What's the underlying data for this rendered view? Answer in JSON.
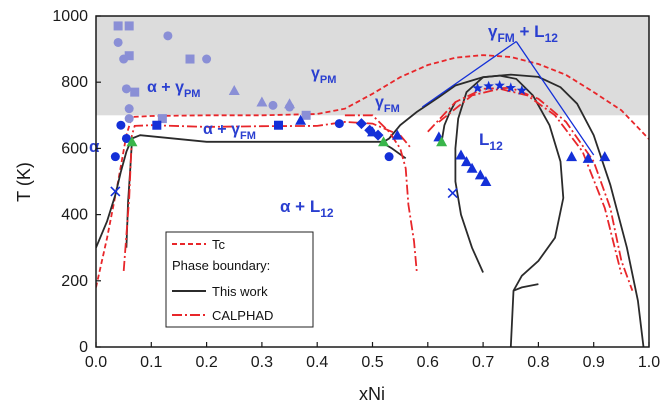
{
  "chart_data": {
    "type": "scatter",
    "title": "",
    "xlabel": "xNi",
    "ylabel": "T (K)",
    "xlim": [
      0.0,
      1.0
    ],
    "ylim": [
      0,
      1000
    ],
    "x_ticks": [
      0.0,
      0.1,
      0.2,
      0.3,
      0.4,
      0.5,
      0.6,
      0.7,
      0.8,
      0.9,
      1.0
    ],
    "y_ticks": [
      0,
      200,
      400,
      600,
      800,
      1000
    ],
    "x_tick_labels": [
      "0.0",
      "0.1",
      "0.2",
      "0.3",
      "0.4",
      "0.5",
      "0.6",
      "0.7",
      "0.8",
      "0.9",
      "1.0"
    ],
    "y_tick_labels": [
      "0",
      "200",
      "400",
      "600",
      "800",
      "1000"
    ],
    "shaded_region": {
      "color": "#dcdcdc",
      "description_y_bottom": 700
    },
    "colors": {
      "tc": "#e8262a",
      "this_work": "#2b2b2b",
      "calphad": "#e8262a",
      "exp": "#1430d8",
      "exp_light": "#8a8fd6",
      "triangle_green": "#39b54a",
      "label": "#2a3fd0"
    },
    "phase_labels": {
      "alpha": "α",
      "alpha_gpm": "α + γPM",
      "alpha_gfm": "α + γFM",
      "gpm": "γPM",
      "gfm": "γFM",
      "gfm_l12": "γFM + L12",
      "l12": "L12",
      "alpha_l12": "α + L12"
    },
    "legend": {
      "tc": "Tc",
      "phase_boundary_header": "Phase boundary:",
      "this_work": "This work",
      "calphad": "CALPHAD"
    },
    "series": [
      {
        "name": "Tc",
        "style": "dashed",
        "points": [
          [
            0.0,
            180
          ],
          [
            0.02,
            330
          ],
          [
            0.04,
            500
          ],
          [
            0.055,
            640
          ],
          [
            0.065,
            695
          ],
          [
            0.1,
            698
          ],
          [
            0.2,
            700
          ],
          [
            0.3,
            700
          ],
          [
            0.4,
            704
          ],
          [
            0.45,
            720
          ],
          [
            0.5,
            765
          ],
          [
            0.55,
            815
          ],
          [
            0.6,
            852
          ],
          [
            0.65,
            874
          ],
          [
            0.7,
            882
          ],
          [
            0.75,
            876
          ],
          [
            0.8,
            855
          ],
          [
            0.85,
            822
          ],
          [
            0.9,
            770
          ],
          [
            0.95,
            715
          ],
          [
            1.0,
            628
          ]
        ]
      },
      {
        "name": "This work",
        "style": "solid",
        "curves": [
          [
            [
              0.0,
              300
            ],
            [
              0.02,
              380
            ],
            [
              0.035,
              460
            ],
            [
              0.045,
              530
            ],
            [
              0.055,
              590
            ],
            [
              0.065,
              630
            ],
            [
              0.08,
              640
            ],
            [
              0.2,
              620
            ],
            [
              0.52,
              620
            ],
            [
              0.53,
              630
            ],
            [
              0.55,
              670
            ],
            [
              0.58,
              710
            ],
            [
              0.62,
              755
            ],
            [
              0.65,
              790
            ],
            [
              0.7,
              815
            ],
            [
              0.75,
              823
            ],
            [
              0.8,
              816
            ],
            [
              0.84,
              785
            ],
            [
              0.87,
              735
            ],
            [
              0.9,
              640
            ],
            [
              0.93,
              490
            ],
            [
              0.96,
              300
            ],
            [
              0.98,
              140
            ],
            [
              0.99,
              0
            ]
          ],
          [
            [
              0.065,
              620
            ],
            [
              0.062,
              540
            ],
            [
              0.058,
              440
            ],
            [
              0.055,
              300
            ]
          ],
          [
            [
              0.625,
              620
            ],
            [
              0.63,
              670
            ],
            [
              0.64,
              710
            ],
            [
              0.65,
              740
            ]
          ],
          [
            [
              0.515,
              620
            ],
            [
              0.535,
              600
            ],
            [
              0.56,
              570
            ]
          ],
          [
            [
              0.7,
              225
            ],
            [
              0.68,
              300
            ],
            [
              0.66,
              400
            ],
            [
              0.65,
              500
            ],
            [
              0.65,
              600
            ],
            [
              0.655,
              690
            ],
            [
              0.67,
              770
            ],
            [
              0.7,
              815
            ],
            [
              0.73,
              820
            ],
            [
              0.76,
              810
            ],
            [
              0.79,
              760
            ],
            [
              0.82,
              670
            ],
            [
              0.84,
              560
            ],
            [
              0.845,
              450
            ],
            [
              0.83,
              330
            ],
            [
              0.8,
              260
            ],
            [
              0.77,
              215
            ],
            [
              0.755,
              170
            ],
            [
              0.75,
              0
            ]
          ],
          [
            [
              0.755,
              170
            ],
            [
              0.77,
              180
            ],
            [
              0.8,
              190
            ]
          ]
        ]
      },
      {
        "name": "CALPHAD",
        "style": "dashdot",
        "curves": [
          [
            [
              0.05,
              230
            ],
            [
              0.06,
              450
            ],
            [
              0.065,
              640
            ],
            [
              0.07,
              668
            ],
            [
              0.1,
              670
            ],
            [
              0.2,
              665
            ],
            [
              0.3,
              667
            ],
            [
              0.4,
              668
            ],
            [
              0.45,
              680
            ],
            [
              0.5,
              675
            ],
            [
              0.55,
              640
            ],
            [
              0.57,
              600
            ]
          ],
          [
            [
              0.45,
              700
            ],
            [
              0.5,
              700
            ],
            [
              0.53,
              650
            ],
            [
              0.55,
              600
            ],
            [
              0.56,
              540
            ],
            [
              0.565,
              430
            ],
            [
              0.575,
              320
            ],
            [
              0.58,
              230
            ]
          ],
          [
            [
              0.6,
              650
            ],
            [
              0.65,
              740
            ],
            [
              0.7,
              780
            ],
            [
              0.75,
              783
            ],
            [
              0.8,
              750
            ],
            [
              0.85,
              680
            ],
            [
              0.9,
              560
            ],
            [
              0.93,
              420
            ],
            [
              0.95,
              260
            ],
            [
              0.97,
              170
            ]
          ],
          [
            [
              0.62,
              680
            ],
            [
              0.68,
              760
            ],
            [
              0.73,
              780
            ],
            [
              0.78,
              760
            ],
            [
              0.83,
              700
            ],
            [
              0.88,
              590
            ],
            [
              0.92,
              420
            ],
            [
              0.95,
              220
            ]
          ]
        ]
      },
      {
        "name": "exp_light_circles",
        "marker": "circle",
        "points": [
          [
            0.04,
            920
          ],
          [
            0.05,
            870
          ],
          [
            0.055,
            780
          ],
          [
            0.06,
            720
          ],
          [
            0.13,
            940
          ],
          [
            0.2,
            870
          ],
          [
            0.32,
            730
          ],
          [
            0.35,
            725
          ],
          [
            0.06,
            690
          ]
        ]
      },
      {
        "name": "exp_light_squares",
        "marker": "square",
        "points": [
          [
            0.04,
            970
          ],
          [
            0.06,
            970
          ],
          [
            0.06,
            880
          ],
          [
            0.07,
            770
          ],
          [
            0.17,
            870
          ],
          [
            0.38,
            700
          ],
          [
            0.12,
            690
          ]
        ]
      },
      {
        "name": "exp_light_triangles",
        "marker": "triangle",
        "points": [
          [
            0.25,
            775
          ],
          [
            0.3,
            740
          ],
          [
            0.35,
            735
          ]
        ]
      },
      {
        "name": "exp_circles",
        "marker": "circle",
        "points": [
          [
            0.035,
            575
          ],
          [
            0.045,
            670
          ],
          [
            0.055,
            630
          ],
          [
            0.44,
            675
          ],
          [
            0.53,
            575
          ]
        ]
      },
      {
        "name": "exp_squares",
        "marker": "square",
        "points": [
          [
            0.11,
            670
          ],
          [
            0.33,
            670
          ]
        ]
      },
      {
        "name": "exp_diamonds",
        "marker": "diamond",
        "points": [
          [
            0.48,
            675
          ],
          [
            0.495,
            655
          ],
          [
            0.51,
            640
          ]
        ]
      },
      {
        "name": "exp_triangles",
        "marker": "triangle",
        "points": [
          [
            0.37,
            685
          ],
          [
            0.5,
            650
          ],
          [
            0.545,
            640
          ],
          [
            0.62,
            635
          ],
          [
            0.66,
            580
          ],
          [
            0.67,
            560
          ],
          [
            0.68,
            540
          ],
          [
            0.695,
            520
          ],
          [
            0.705,
            500
          ],
          [
            0.86,
            575
          ],
          [
            0.89,
            570
          ],
          [
            0.92,
            575
          ]
        ]
      },
      {
        "name": "exp_green_triangles",
        "marker": "triangle",
        "points": [
          [
            0.065,
            620
          ],
          [
            0.52,
            620
          ],
          [
            0.625,
            620
          ]
        ]
      },
      {
        "name": "exp_stars",
        "marker": "star",
        "points": [
          [
            0.69,
            782
          ],
          [
            0.71,
            788
          ],
          [
            0.73,
            790
          ],
          [
            0.75,
            783
          ],
          [
            0.77,
            775
          ]
        ]
      },
      {
        "name": "exp_x",
        "marker": "x",
        "points": [
          [
            0.035,
            470
          ],
          [
            0.645,
            465
          ]
        ]
      }
    ]
  }
}
